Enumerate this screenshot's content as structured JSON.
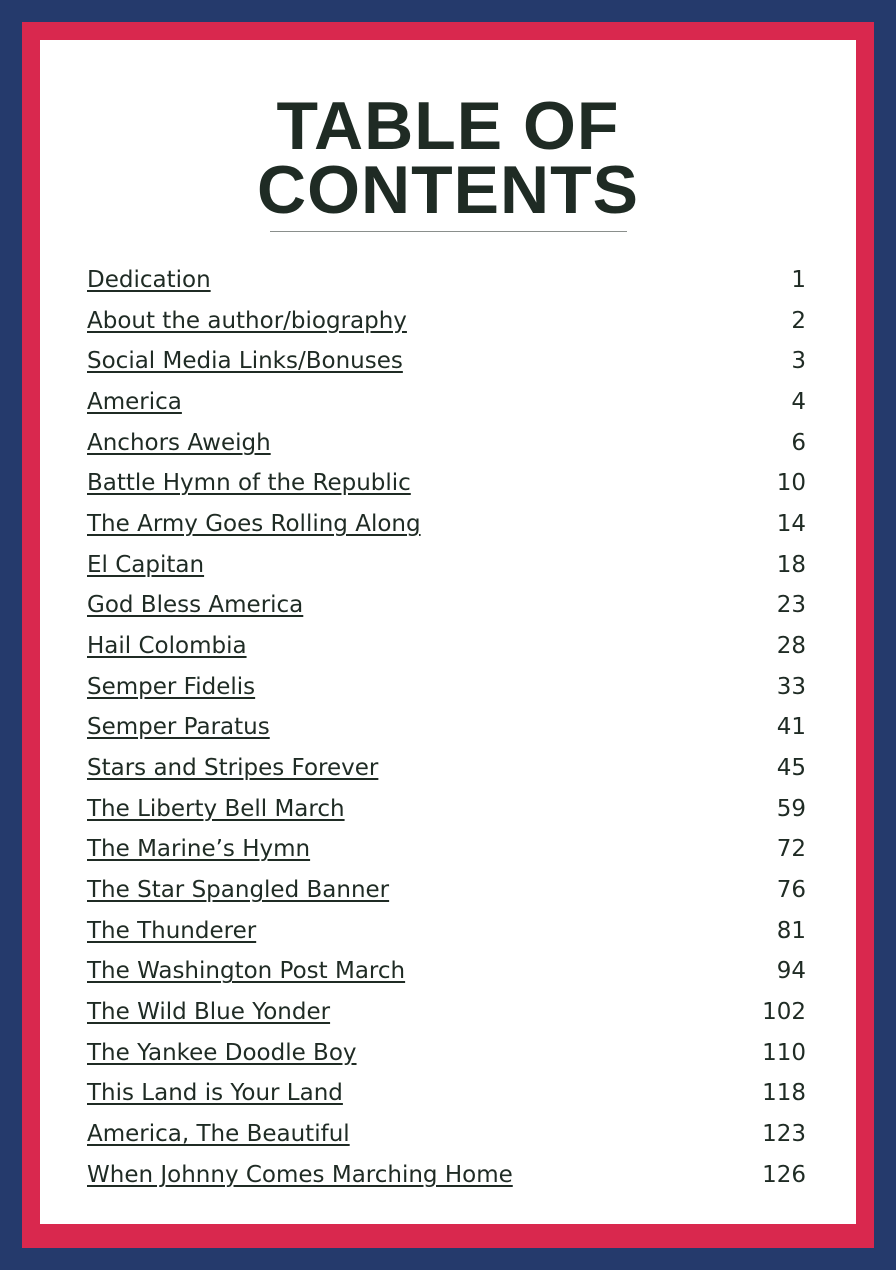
{
  "colors": {
    "outer_border": "#253a6c",
    "inner_border": "#d9284e",
    "text": "#1f2b24"
  },
  "title_lines": [
    "TABLE OF",
    "CONTENTS"
  ],
  "entries": [
    {
      "title": "Dedication",
      "page": "1"
    },
    {
      "title": "About the author/biography",
      "page": "2"
    },
    {
      "title": "Social Media Links/Bonuses",
      "page": "3"
    },
    {
      "title": "America",
      "page": "4"
    },
    {
      "title": "Anchors Aweigh",
      "page": "6"
    },
    {
      "title": "Battle Hymn of the Republic",
      "page": "10"
    },
    {
      "title": "The Army Goes Rolling Along",
      "page": "14"
    },
    {
      "title": "El Capitan",
      "page": "18"
    },
    {
      "title": "God Bless America",
      "page": "23"
    },
    {
      "title": "Hail Colombia",
      "page": "28"
    },
    {
      "title": "Semper Fidelis",
      "page": "33"
    },
    {
      "title": "Semper Paratus",
      "page": "41"
    },
    {
      "title": "Stars and Stripes Forever",
      "page": "45"
    },
    {
      "title": "The Liberty Bell March",
      "page": "59"
    },
    {
      "title": "The Marine’s Hymn",
      "page": "72"
    },
    {
      "title": "The Star Spangled Banner",
      "page": "76"
    },
    {
      "title": "The Thunderer",
      "page": "81"
    },
    {
      "title": "The Washington Post March",
      "page": "94"
    },
    {
      "title": "The Wild Blue Yonder",
      "page": "102"
    },
    {
      "title": "The Yankee Doodle Boy",
      "page": "110"
    },
    {
      "title": "This Land is Your Land",
      "page": "118"
    },
    {
      "title": "America, The Beautiful",
      "page": "123"
    },
    {
      "title": "When Johnny Comes Marching Home",
      "page": "126"
    }
  ]
}
